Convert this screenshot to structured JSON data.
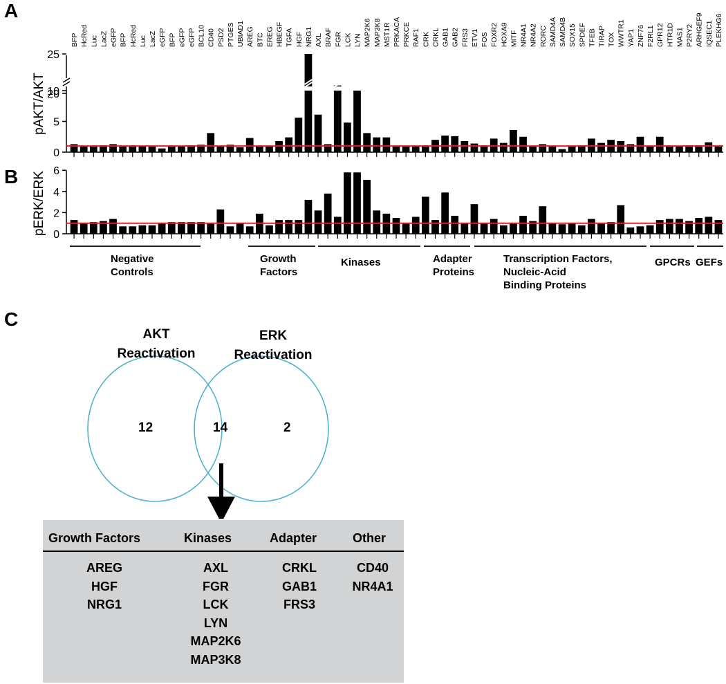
{
  "panels": {
    "a": "A",
    "b": "B",
    "c": "C"
  },
  "colors": {
    "bar": "#000000",
    "threshold": "#e31e24",
    "venn": "#4fb3cf",
    "table_bg": "#d1d3d4"
  },
  "chart_data": [
    {
      "type": "bar",
      "panel": "A",
      "ylabel": "pAKT/AKT",
      "threshold": 1,
      "broken_axis": true,
      "yticks": [
        0,
        5,
        10,
        20,
        25
      ],
      "categories": [
        "BFP",
        "HcRed",
        "Luc",
        "LacZ",
        "eGFP",
        "BFP",
        "HcRed",
        "Luc",
        "LacZ",
        "eGFP",
        "BFP",
        "eGFP",
        "eGFP",
        "BCL10",
        "CD40",
        "PSD2",
        "PTGES",
        "UBIAD1",
        "AREG",
        "BTC",
        "EREG",
        "HBEGF",
        "TGFA",
        "HGF",
        "NRG1",
        "AXL",
        "BRAF",
        "FGR",
        "LCK",
        "LYN",
        "MAP2K6",
        "MAP3K8",
        "MST1R",
        "PRKACA",
        "PRKCE",
        "RAF1",
        "CRK",
        "CRKL",
        "GAB1",
        "GAB2",
        "FRS3",
        "ETV1",
        "FOS",
        "FOXR2",
        "HOXA9",
        "MITF",
        "NR4A1",
        "NR4A2",
        "RORC",
        "SAMD4A",
        "SAMD4B",
        "SOX15",
        "SPDEF",
        "TFEB",
        "TIRAP",
        "TOX",
        "WWTR1",
        "YAP1",
        "ZNF76",
        "F2RL1",
        "GPR12",
        "HTR1D",
        "MAS1",
        "P2RY2",
        "ARHGEF9",
        "IQSEC1",
        "PLEKHG6"
      ],
      "values": [
        1.3,
        1.0,
        1.0,
        1.1,
        1.3,
        1.0,
        1.1,
        0.9,
        1.0,
        0.6,
        1.0,
        1.0,
        1.1,
        1.2,
        3.1,
        1.0,
        1.2,
        0.8,
        2.3,
        1.0,
        1.0,
        1.8,
        2.4,
        5.6,
        25,
        6.1,
        1.3,
        21,
        4.8,
        10,
        3.1,
        2.4,
        2.4,
        0.9,
        1.0,
        1.0,
        1.1,
        2.0,
        2.7,
        2.6,
        1.8,
        1.4,
        1.1,
        2.2,
        1.5,
        3.6,
        2.5,
        1.0,
        1.3,
        1.0,
        0.5,
        1.0,
        1.1,
        2.2,
        1.5,
        2.0,
        1.8,
        1.3,
        2.5,
        1.0,
        2.5,
        1.0,
        1.0,
        1.1,
        1.1,
        1.6,
        1.0
      ]
    },
    {
      "type": "bar",
      "panel": "B",
      "ylabel": "pERK/ERK",
      "threshold": 1,
      "ylim": [
        0,
        6
      ],
      "yticks": [
        0,
        2,
        4,
        6
      ],
      "categories": [
        "BFP",
        "HcRed",
        "Luc",
        "LacZ",
        "eGFP",
        "BFP",
        "HcRed",
        "Luc",
        "LacZ",
        "eGFP",
        "BFP",
        "eGFP",
        "eGFP",
        "BCL10",
        "CD40",
        "PSD2",
        "PTGES",
        "UBIAD1",
        "AREG",
        "BTC",
        "EREG",
        "HBEGF",
        "TGFA",
        "HGF",
        "NRG1",
        "AXL",
        "BRAF",
        "FGR",
        "LCK",
        "LYN",
        "MAP2K6",
        "MAP3K8",
        "MST1R",
        "PRKACA",
        "PRKCE",
        "RAF1",
        "CRK",
        "CRKL",
        "GAB1",
        "GAB2",
        "FRS3",
        "ETV1",
        "FOS",
        "FOXR2",
        "HOXA9",
        "MITF",
        "NR4A1",
        "NR4A2",
        "RORC",
        "SAMD4A",
        "SAMD4B",
        "SOX15",
        "SPDEF",
        "TFEB",
        "TIRAP",
        "TOX",
        "WWTR1",
        "YAP1",
        "ZNF76",
        "F2RL1",
        "GPR12",
        "HTR1D",
        "MAS1",
        "P2RY2",
        "ARHGEF9",
        "IQSEC1",
        "PLEKHG6"
      ],
      "values": [
        1.3,
        1.0,
        1.1,
        1.2,
        1.4,
        0.7,
        0.7,
        0.8,
        0.8,
        1.0,
        1.1,
        1.1,
        1.1,
        1.1,
        1.0,
        2.3,
        0.7,
        1.0,
        0.7,
        1.9,
        0.8,
        1.3,
        1.3,
        1.3,
        3.2,
        2.2,
        3.8,
        1.6,
        5.8,
        5.8,
        5.1,
        2.2,
        1.9,
        1.5,
        1.0,
        1.6,
        3.5,
        1.3,
        3.9,
        1.7,
        1.0,
        2.8,
        1.0,
        1.4,
        0.8,
        1.0,
        1.7,
        1.2,
        2.6,
        1.0,
        0.9,
        1.0,
        0.8,
        1.4,
        1.0,
        1.1,
        2.7,
        0.6,
        0.7,
        0.8,
        1.3,
        1.4,
        1.4,
        1.2,
        1.5,
        1.6,
        1.3
      ]
    }
  ],
  "groups": [
    {
      "label": "Negative\nControls"
    },
    {
      "label": "Growth\nFactors"
    },
    {
      "label": "Kinases"
    },
    {
      "label": "Adapter\nProteins"
    },
    {
      "label": "Transcription Factors,\nNucleic-Acid\nBinding Proteins"
    },
    {
      "label": "GPCRs"
    },
    {
      "label": "GEFs"
    }
  ],
  "venn": {
    "left_title": "AKT\nReactivation",
    "right_title": "ERK\nReactivation",
    "left_only": "12",
    "both": "14",
    "right_only": "2"
  },
  "table": {
    "columns": [
      {
        "header": "Growth Factors",
        "items": [
          "AREG",
          "HGF",
          "NRG1"
        ]
      },
      {
        "header": "Kinases",
        "items": [
          "AXL",
          "FGR",
          "LCK",
          "LYN",
          "MAP2K6",
          "MAP3K8"
        ]
      },
      {
        "header": "Adapter",
        "items": [
          "CRKL",
          "GAB1",
          "FRS3"
        ]
      },
      {
        "header": "Other",
        "items": [
          "CD40",
          "NR4A1"
        ]
      }
    ]
  }
}
